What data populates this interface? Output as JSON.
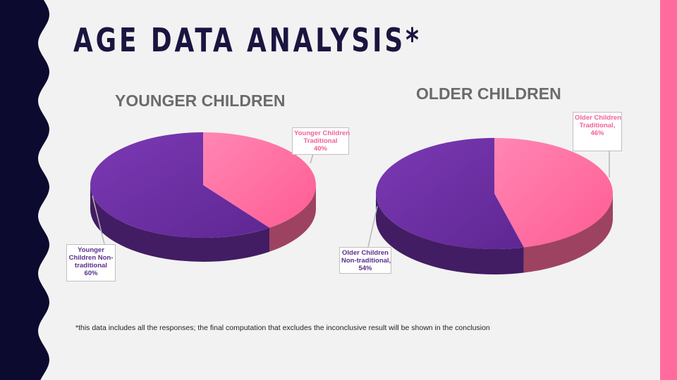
{
  "slide": {
    "title": "AGE DATA ANALYSIS*",
    "footnote": "*this data includes all the responses; the final computation that excludes the inconclusive result will be shown in the conclusion",
    "colors": {
      "left_band": "#0c0a2e",
      "right_stripe": "#ff6b9d",
      "background": "#f2f2f2"
    }
  },
  "chart_data": [
    {
      "type": "pie",
      "title": "YOUNGER CHILDREN",
      "labels": [
        "Younger Children Traditional",
        "Younger Children Non-traditional"
      ],
      "values": [
        40,
        60
      ],
      "data_labels": [
        [
          "Younger Children",
          "Traditional",
          "40%"
        ],
        [
          "Younger",
          "Children Non-",
          "traditional",
          "60%"
        ]
      ],
      "colors": [
        "#ff6b9d",
        "#6b2fa0"
      ]
    },
    {
      "type": "pie",
      "title": "OLDER CHILDREN",
      "labels": [
        "Older Children Traditional",
        "Older Children Non-traditional"
      ],
      "values": [
        46,
        54
      ],
      "data_labels": [
        [
          "Older Children",
          "Traditional,",
          "46%"
        ],
        [
          "Older Children",
          "Non-traditional,",
          "54%"
        ]
      ],
      "colors": [
        "#ff6b9d",
        "#6b2fa0"
      ]
    }
  ]
}
